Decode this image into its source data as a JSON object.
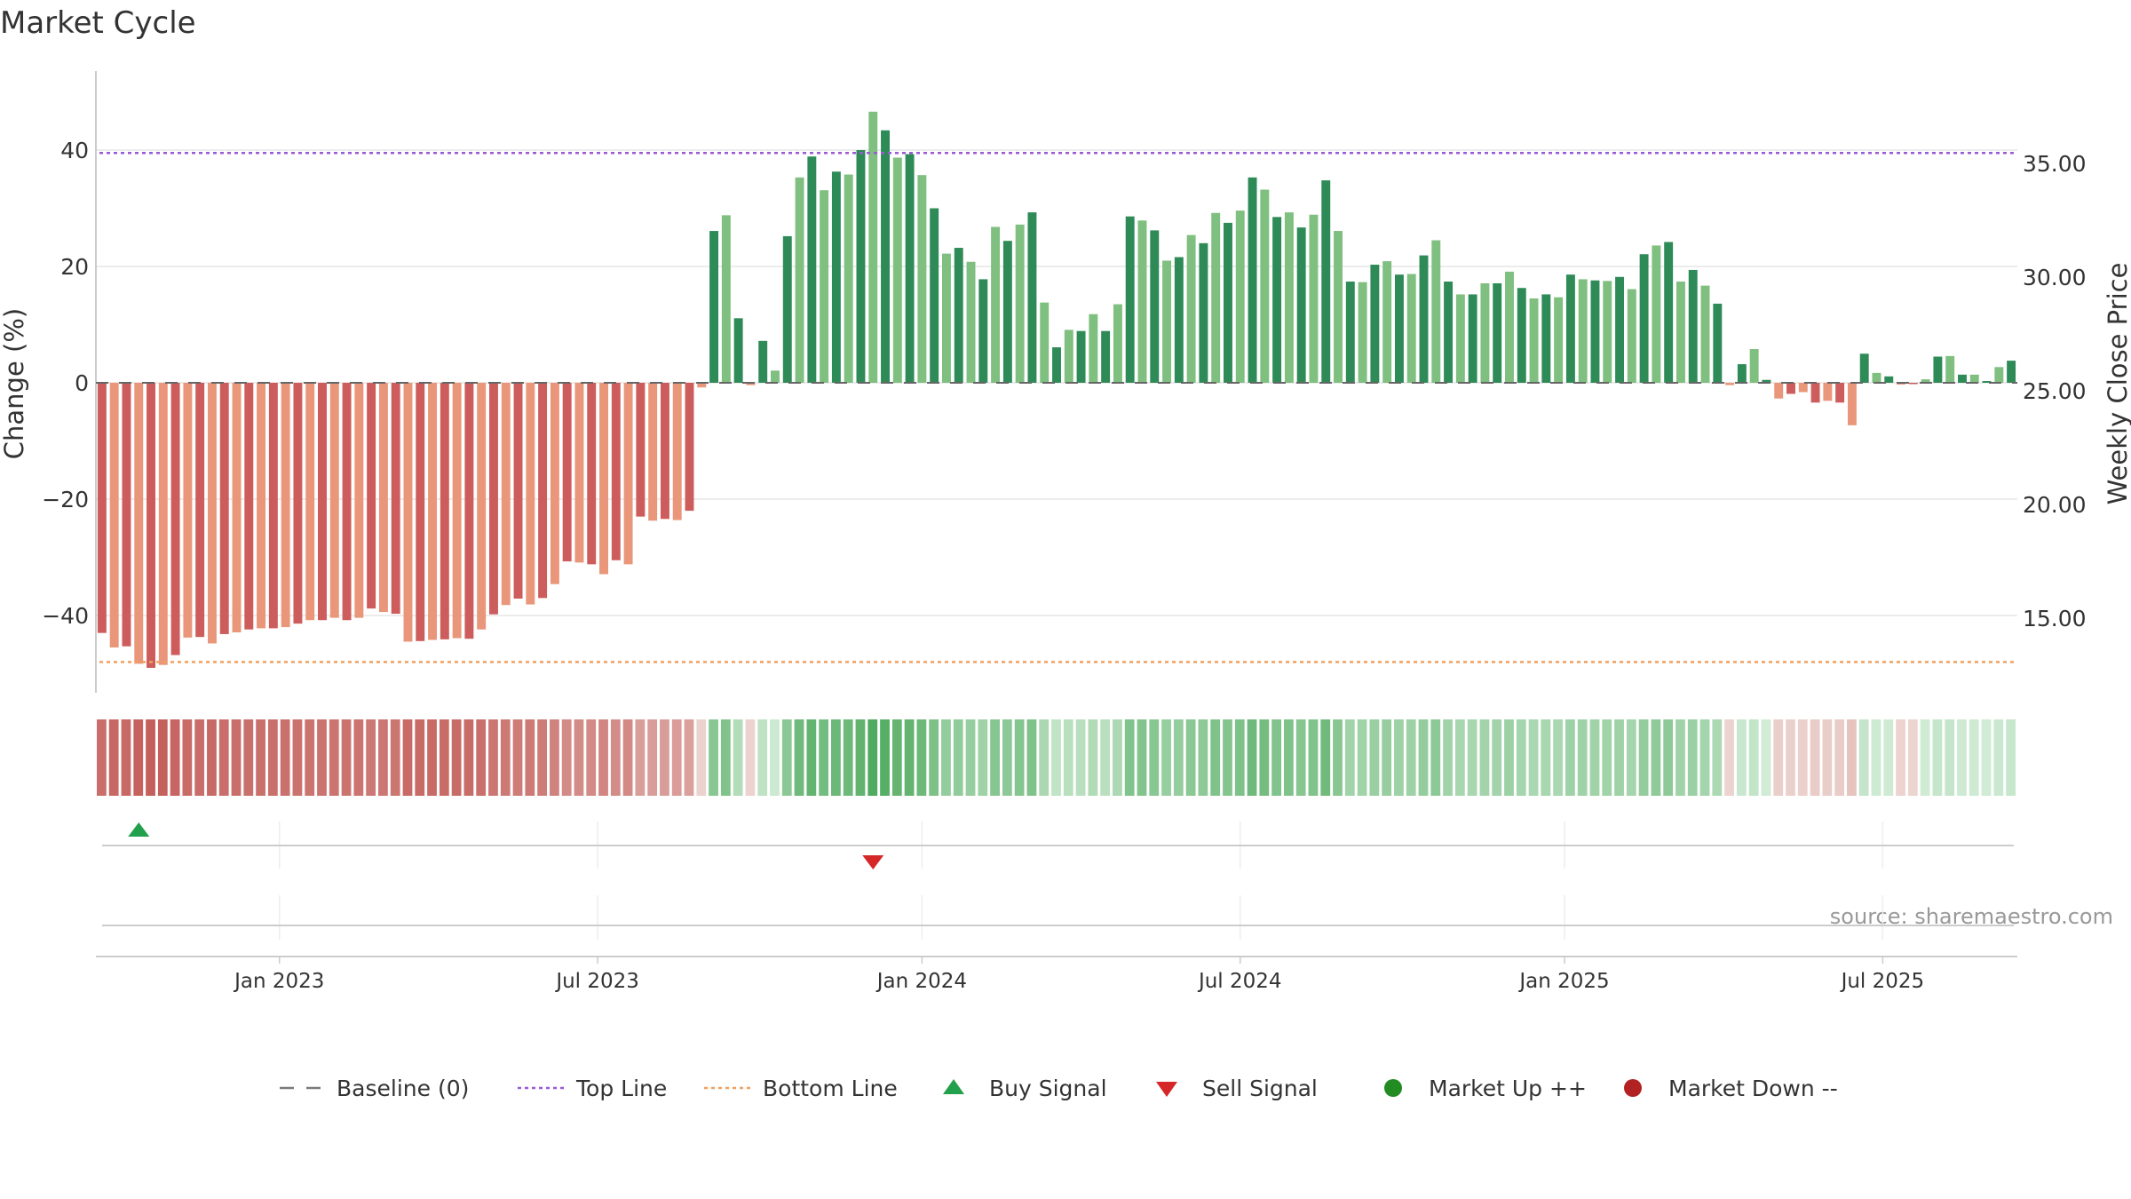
{
  "title": "Market Cycle",
  "source": "source: sharemaestro.com",
  "chart_data": {
    "type": "bar",
    "ylabel": "Change (%)",
    "y2label": "Weekly Close Price",
    "ylim": [
      -53,
      54
    ],
    "y_ticks": [
      -40,
      -20,
      0,
      20,
      40
    ],
    "y_tick_labels": [
      "−40",
      "−20",
      "0",
      "20",
      "40"
    ],
    "y2_ticks": [
      35.0,
      30.0,
      25.0,
      20.0,
      15.0
    ],
    "y2_tick_labels": [
      "35.00",
      "30.00",
      "25.00",
      "20.00",
      "15.00"
    ],
    "top_line": 39.5,
    "bottom_line": -48,
    "x_tick_labels": [
      "Jan 2023",
      "Jul 2023",
      "Jan 2024",
      "Jul 2024",
      "Jan 2025",
      "Jul 2025"
    ],
    "x_tick_weeks": [
      15,
      41,
      67.5,
      93.5,
      120,
      146
    ],
    "values": [
      -43,
      -45.5,
      -45.3,
      -48.3,
      -49,
      -48.5,
      -46.8,
      -43.8,
      -43.7,
      -44.8,
      -43.2,
      -42.9,
      -42.4,
      -42.2,
      -42.2,
      -42,
      -41.4,
      -40.8,
      -40.8,
      -40.4,
      -40.8,
      -40.4,
      -38.8,
      -39.4,
      -39.7,
      -44.5,
      -44.4,
      -44.2,
      -44.1,
      -43.9,
      -44,
      -42.4,
      -39.8,
      -38.2,
      -37.1,
      -38.1,
      -37,
      -34.6,
      -30.7,
      -30.9,
      -31.2,
      -32.9,
      -30.5,
      -31.2,
      -23,
      -23.7,
      -23.4,
      -23.6,
      -22,
      -0.8,
      26.1,
      28.8,
      11.1,
      -0.4,
      7.2,
      2.1,
      25.2,
      35.3,
      38.9,
      33.1,
      36.3,
      35.8,
      40,
      46.6,
      43.4,
      38.7,
      39.3,
      35.7,
      30,
      22.2,
      23.2,
      20.8,
      17.8,
      26.8,
      24.4,
      27.2,
      29.3,
      13.8,
      6.1,
      9.1,
      8.9,
      11.8,
      8.9,
      13.5,
      28.6,
      27.9,
      26.2,
      21,
      21.6,
      25.4,
      24,
      29.2,
      27.5,
      29.6,
      35.3,
      33.2,
      28.5,
      29.3,
      26.7,
      28.9,
      34.8,
      26.1,
      17.4,
      17.3,
      20.3,
      20.9,
      18.6,
      18.7,
      21.9,
      24.5,
      17.4,
      15.2,
      15.2,
      17.1,
      17.1,
      19.1,
      16.3,
      14.5,
      15.2,
      14.7,
      18.6,
      17.8,
      17.6,
      17.5,
      18.2,
      16.1,
      22.1,
      23.6,
      24.2,
      17.4,
      19.4,
      16.7,
      13.6,
      -0.4,
      3.2,
      5.8,
      0.5,
      -2.7,
      -1.9,
      -1.6,
      -3.4,
      -3.1,
      -3.4,
      -7.3,
      5,
      1.7,
      1.1,
      -0.3,
      -0.2,
      0.6,
      4.5,
      4.6,
      1.4,
      1.4,
      0.3,
      2.7,
      3.8
    ],
    "signals": [
      {
        "name": "Buy Signal",
        "week": 3.5,
        "marker": "triangle-up",
        "color": "#22a04b"
      },
      {
        "name": "Sell Signal",
        "week": 63.5,
        "marker": "triangle-down",
        "color": "#d62728"
      }
    ],
    "legend": {
      "placement": "bottom-center",
      "items": [
        {
          "label": "Baseline (0)",
          "symbol": "dash",
          "color": "#7a7a7a"
        },
        {
          "label": "Top Line",
          "symbol": "dot",
          "color": "#9b59d6"
        },
        {
          "label": "Bottom Line",
          "symbol": "dot",
          "color": "#f0a060"
        },
        {
          "label": "Buy Signal",
          "symbol": "triangle-up",
          "color": "#22a04b"
        },
        {
          "label": "Sell Signal",
          "symbol": "triangle-down",
          "color": "#d62728"
        },
        {
          "label": "Market Up ++",
          "symbol": "circle",
          "color": "#228b22"
        },
        {
          "label": "Market Down --",
          "symbol": "circle",
          "color": "#b22222"
        }
      ]
    },
    "colors": {
      "up_strong": "#2e8b57",
      "up_light": "#7fbf7f",
      "down_strong": "#cd5c5c",
      "down_light": "#e9967a",
      "top_line": "#9b59d6",
      "bottom_line": "#f0a060",
      "grid": "#e6e6e6",
      "axis": "#bbbbbb",
      "text": "#333333"
    }
  }
}
